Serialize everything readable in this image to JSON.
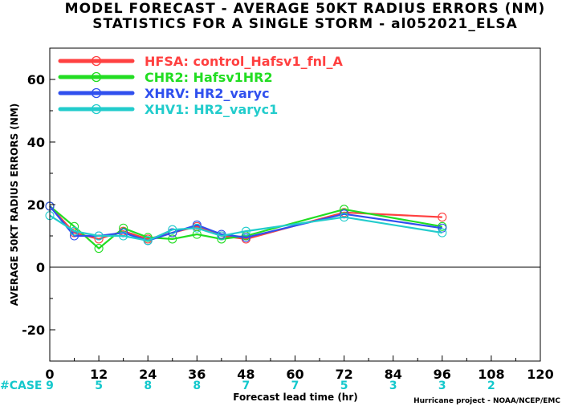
{
  "chart_data": {
    "type": "line",
    "title": "MODEL FORECAST - AVERAGE 50KT RADIUS ERRORS (NM)",
    "subtitle": "STATISTICS FOR A SINGLE STORM - al052021_ELSA",
    "xlabel": "Forecast lead time (hr)",
    "ylabel": "AVERAGE 50KT RADIUS ERRORS (NM)",
    "xlim": [
      0,
      120
    ],
    "ylim": [
      -30,
      70
    ],
    "x_ticks": [
      0,
      12,
      24,
      36,
      48,
      60,
      72,
      84,
      96,
      108,
      120
    ],
    "y_ticks": [
      -20,
      0,
      20,
      40,
      60
    ],
    "zero_line": true,
    "legend_position": "top-left",
    "series": [
      {
        "name": "HFSA: control_Hafsv1_fnl_A",
        "color": "#ff4040",
        "x": [
          0,
          6,
          12,
          18,
          24,
          30,
          36,
          42,
          48,
          72,
          96
        ],
        "y": [
          19.5,
          11,
          9,
          11.5,
          9,
          11,
          13,
          10,
          9,
          17.5,
          16
        ]
      },
      {
        "name": "CHR2: Hafsv1HR2",
        "color": "#22dd22",
        "x": [
          0,
          6,
          12,
          18,
          24,
          30,
          36,
          42,
          48,
          72,
          96
        ],
        "y": [
          19.5,
          13,
          6,
          12.5,
          9.5,
          9,
          10.5,
          9,
          10,
          18.5,
          13
        ]
      },
      {
        "name": "XHRV: HR2_varyc",
        "color": "#3050ee",
        "x": [
          0,
          6,
          12,
          18,
          24,
          30,
          36,
          42,
          48,
          72,
          96
        ],
        "y": [
          19.5,
          10,
          10,
          11,
          8.5,
          11,
          13.5,
          10.5,
          9.5,
          17,
          12.5
        ]
      },
      {
        "name": "XHV1: HR2_varyc1",
        "color": "#22cccc",
        "x": [
          0,
          6,
          12,
          18,
          24,
          30,
          36,
          42,
          48,
          72,
          96
        ],
        "y": [
          16.5,
          11.5,
          10,
          10,
          8.5,
          12,
          12.5,
          10,
          11.5,
          16,
          11
        ]
      }
    ],
    "case_label": "#CASE",
    "case_counts": [
      {
        "x": 0,
        "n": "9"
      },
      {
        "x": 12,
        "n": "5"
      },
      {
        "x": 24,
        "n": "8"
      },
      {
        "x": 36,
        "n": "8"
      },
      {
        "x": 48,
        "n": "7"
      },
      {
        "x": 60,
        "n": "7"
      },
      {
        "x": 72,
        "n": "5"
      },
      {
        "x": 84,
        "n": "3"
      },
      {
        "x": 96,
        "n": "3"
      },
      {
        "x": 108,
        "n": "2"
      }
    ],
    "credit": "Hurricane project - NOAA/NCEP/EMC"
  }
}
